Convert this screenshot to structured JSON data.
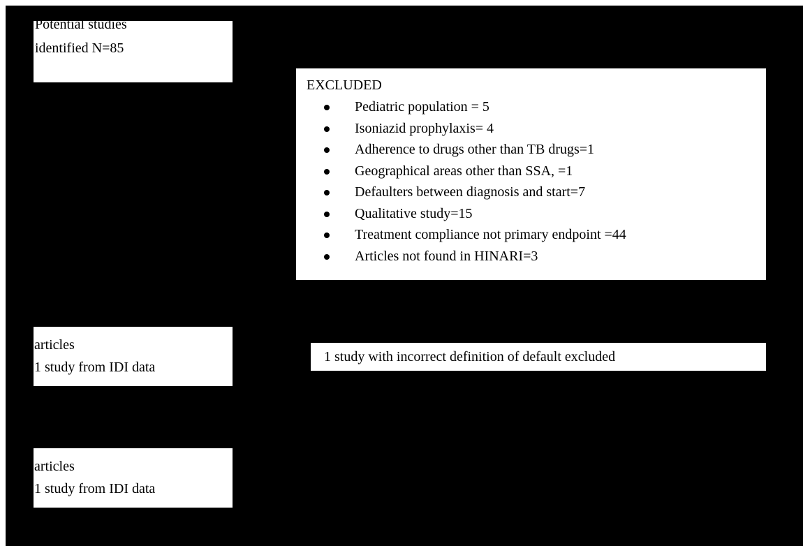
{
  "identified": {
    "line1": "Potential studies",
    "line2": "identified  N=85"
  },
  "excluded": {
    "heading": "EXCLUDED",
    "items": [
      "Pediatric population = 5",
      "Isoniazid prophylaxis= 4",
      "Adherence to drugs other than TB drugs=1",
      "Geographical areas other than SSA, =1",
      "Defaulters between diagnosis and start=7",
      "Qualitative study=15",
      "Treatment compliance not primary endpoint =44",
      "Articles not found in HINARI=3"
    ]
  },
  "included_first": {
    "line1": "articles",
    "line2": "1 study from IDI data"
  },
  "incorrect_definition": {
    "text": "1 study with incorrect definition of default excluded"
  },
  "included_second": {
    "line1": "articles",
    "line2": "1 study from IDI data"
  },
  "colors": {
    "background": "#000000",
    "box_fill": "#ffffff",
    "text": "#000000"
  }
}
